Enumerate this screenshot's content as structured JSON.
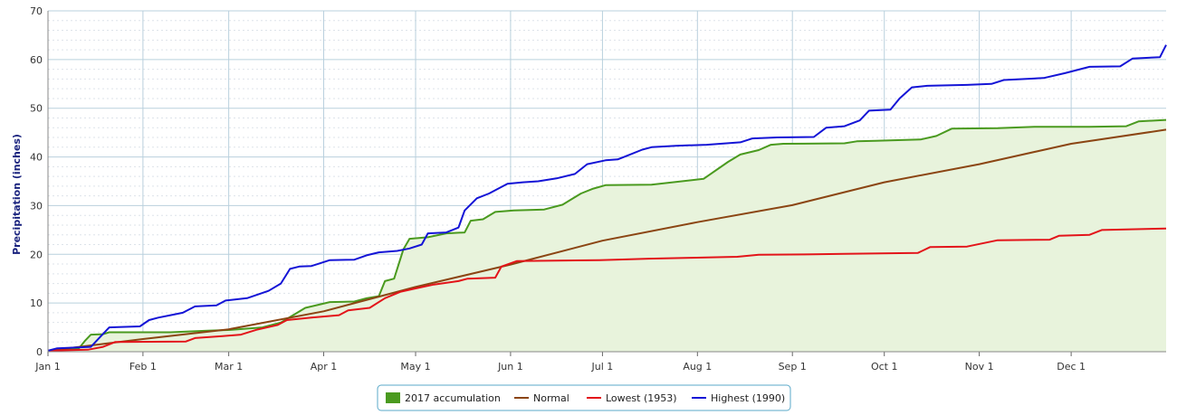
{
  "chart_data": {
    "type": "line",
    "title": "",
    "xlabel": "",
    "ylabel": "Precipitation (inches)",
    "x_ticks": [
      "Jan 1",
      "Feb 1",
      "Mar 1",
      "Apr 1",
      "May 1",
      "Jun 1",
      "Jul 1",
      "Aug 1",
      "Sep 1",
      "Oct 1",
      "Nov 1",
      "Dec 1"
    ],
    "x_tick_days": [
      0,
      31,
      59,
      90,
      120,
      151,
      181,
      212,
      243,
      273,
      304,
      334
    ],
    "xlim": [
      0,
      365
    ],
    "ylim": [
      0,
      70
    ],
    "y_ticks": [
      0,
      10,
      20,
      30,
      40,
      50,
      60,
      70
    ],
    "grid": true,
    "legend_position": "bottom-center",
    "series": [
      {
        "name": "2017 accumulation",
        "kind": "area",
        "color": "#4a9a1f",
        "fill": "#e8f3dc",
        "points": [
          [
            0,
            0.2
          ],
          [
            10,
            0.6
          ],
          [
            12,
            2.2
          ],
          [
            14,
            3.5
          ],
          [
            18,
            3.6
          ],
          [
            20,
            4.0
          ],
          [
            40,
            4.0
          ],
          [
            52,
            4.3
          ],
          [
            60,
            4.5
          ],
          [
            70,
            5.0
          ],
          [
            76,
            6.0
          ],
          [
            80,
            7.5
          ],
          [
            84,
            9.0
          ],
          [
            92,
            10.2
          ],
          [
            100,
            10.3
          ],
          [
            104,
            11.0
          ],
          [
            108,
            11.4
          ],
          [
            110,
            14.5
          ],
          [
            113,
            15.0
          ],
          [
            116,
            21.0
          ],
          [
            118,
            23.2
          ],
          [
            124,
            23.5
          ],
          [
            130,
            24.3
          ],
          [
            136,
            24.5
          ],
          [
            138,
            26.9
          ],
          [
            142,
            27.2
          ],
          [
            146,
            28.7
          ],
          [
            152,
            29.0
          ],
          [
            162,
            29.2
          ],
          [
            168,
            30.2
          ],
          [
            174,
            32.5
          ],
          [
            178,
            33.5
          ],
          [
            182,
            34.2
          ],
          [
            197,
            34.3
          ],
          [
            214,
            35.5
          ],
          [
            222,
            39.0
          ],
          [
            226,
            40.5
          ],
          [
            232,
            41.4
          ],
          [
            236,
            42.5
          ],
          [
            240,
            42.7
          ],
          [
            260,
            42.8
          ],
          [
            264,
            43.2
          ],
          [
            270,
            43.3
          ],
          [
            285,
            43.6
          ],
          [
            290,
            44.3
          ],
          [
            295,
            45.8
          ],
          [
            310,
            45.9
          ],
          [
            322,
            46.2
          ],
          [
            340,
            46.2
          ],
          [
            352,
            46.3
          ],
          [
            356,
            47.3
          ],
          [
            365,
            47.6
          ]
        ]
      },
      {
        "name": "Normal",
        "kind": "line",
        "color": "#8b4513",
        "points": [
          [
            0,
            0.2
          ],
          [
            31,
            2.6
          ],
          [
            59,
            4.6
          ],
          [
            90,
            8.3
          ],
          [
            120,
            13.3
          ],
          [
            151,
            17.9
          ],
          [
            181,
            22.8
          ],
          [
            212,
            26.6
          ],
          [
            243,
            30.1
          ],
          [
            273,
            34.8
          ],
          [
            304,
            38.5
          ],
          [
            334,
            42.7
          ],
          [
            365,
            45.6
          ]
        ]
      },
      {
        "name": "Lowest (1953)",
        "kind": "line",
        "color": "#e3141a",
        "points": [
          [
            0,
            0.2
          ],
          [
            13,
            0.4
          ],
          [
            18,
            1.0
          ],
          [
            22,
            2.0
          ],
          [
            45,
            2.1
          ],
          [
            48,
            2.8
          ],
          [
            57,
            3.2
          ],
          [
            63,
            3.5
          ],
          [
            68,
            4.5
          ],
          [
            75,
            5.5
          ],
          [
            78,
            6.5
          ],
          [
            86,
            7.0
          ],
          [
            95,
            7.5
          ],
          [
            98,
            8.5
          ],
          [
            105,
            9.0
          ],
          [
            110,
            11.0
          ],
          [
            115,
            12.3
          ],
          [
            120,
            13.0
          ],
          [
            126,
            13.8
          ],
          [
            134,
            14.5
          ],
          [
            137,
            15.0
          ],
          [
            146,
            15.2
          ],
          [
            148,
            17.5
          ],
          [
            153,
            18.6
          ],
          [
            180,
            18.8
          ],
          [
            190,
            19.0
          ],
          [
            196,
            19.1
          ],
          [
            210,
            19.3
          ],
          [
            225,
            19.5
          ],
          [
            232,
            19.9
          ],
          [
            250,
            20.0
          ],
          [
            260,
            20.1
          ],
          [
            284,
            20.3
          ],
          [
            288,
            21.5
          ],
          [
            300,
            21.6
          ],
          [
            310,
            22.9
          ],
          [
            327,
            23.0
          ],
          [
            330,
            23.8
          ],
          [
            340,
            24.0
          ],
          [
            344,
            25.0
          ],
          [
            365,
            25.3
          ]
        ]
      },
      {
        "name": "Highest (1990)",
        "kind": "line",
        "color": "#1414d6",
        "points": [
          [
            0,
            0.2
          ],
          [
            3,
            0.7
          ],
          [
            14,
            1.0
          ],
          [
            17,
            3.0
          ],
          [
            20,
            5.0
          ],
          [
            30,
            5.2
          ],
          [
            33,
            6.5
          ],
          [
            36,
            7.0
          ],
          [
            40,
            7.5
          ],
          [
            44,
            8.0
          ],
          [
            48,
            9.3
          ],
          [
            55,
            9.5
          ],
          [
            58,
            10.5
          ],
          [
            65,
            11.0
          ],
          [
            72,
            12.5
          ],
          [
            76,
            14.0
          ],
          [
            79,
            17.0
          ],
          [
            82,
            17.5
          ],
          [
            86,
            17.6
          ],
          [
            88,
            18.0
          ],
          [
            92,
            18.8
          ],
          [
            100,
            18.9
          ],
          [
            104,
            19.8
          ],
          [
            108,
            20.4
          ],
          [
            114,
            20.7
          ],
          [
            118,
            21.2
          ],
          [
            122,
            22.0
          ],
          [
            124,
            24.3
          ],
          [
            130,
            24.5
          ],
          [
            134,
            25.5
          ],
          [
            136,
            29.0
          ],
          [
            140,
            31.5
          ],
          [
            144,
            32.5
          ],
          [
            150,
            34.5
          ],
          [
            155,
            34.8
          ],
          [
            160,
            35.0
          ],
          [
            166,
            35.6
          ],
          [
            172,
            36.5
          ],
          [
            176,
            38.5
          ],
          [
            182,
            39.3
          ],
          [
            186,
            39.5
          ],
          [
            190,
            40.5
          ],
          [
            194,
            41.5
          ],
          [
            197,
            42.0
          ],
          [
            205,
            42.3
          ],
          [
            215,
            42.5
          ],
          [
            226,
            43.0
          ],
          [
            230,
            43.8
          ],
          [
            238,
            44.0
          ],
          [
            250,
            44.1
          ],
          [
            254,
            46.0
          ],
          [
            260,
            46.3
          ],
          [
            265,
            47.5
          ],
          [
            268,
            49.5
          ],
          [
            275,
            49.7
          ],
          [
            278,
            52.0
          ],
          [
            282,
            54.3
          ],
          [
            287,
            54.6
          ],
          [
            300,
            54.8
          ],
          [
            308,
            55.0
          ],
          [
            312,
            55.8
          ],
          [
            325,
            56.2
          ],
          [
            332,
            57.2
          ],
          [
            340,
            58.5
          ],
          [
            350,
            58.6
          ],
          [
            354,
            60.2
          ],
          [
            363,
            60.5
          ],
          [
            365,
            63.0
          ]
        ]
      }
    ]
  }
}
